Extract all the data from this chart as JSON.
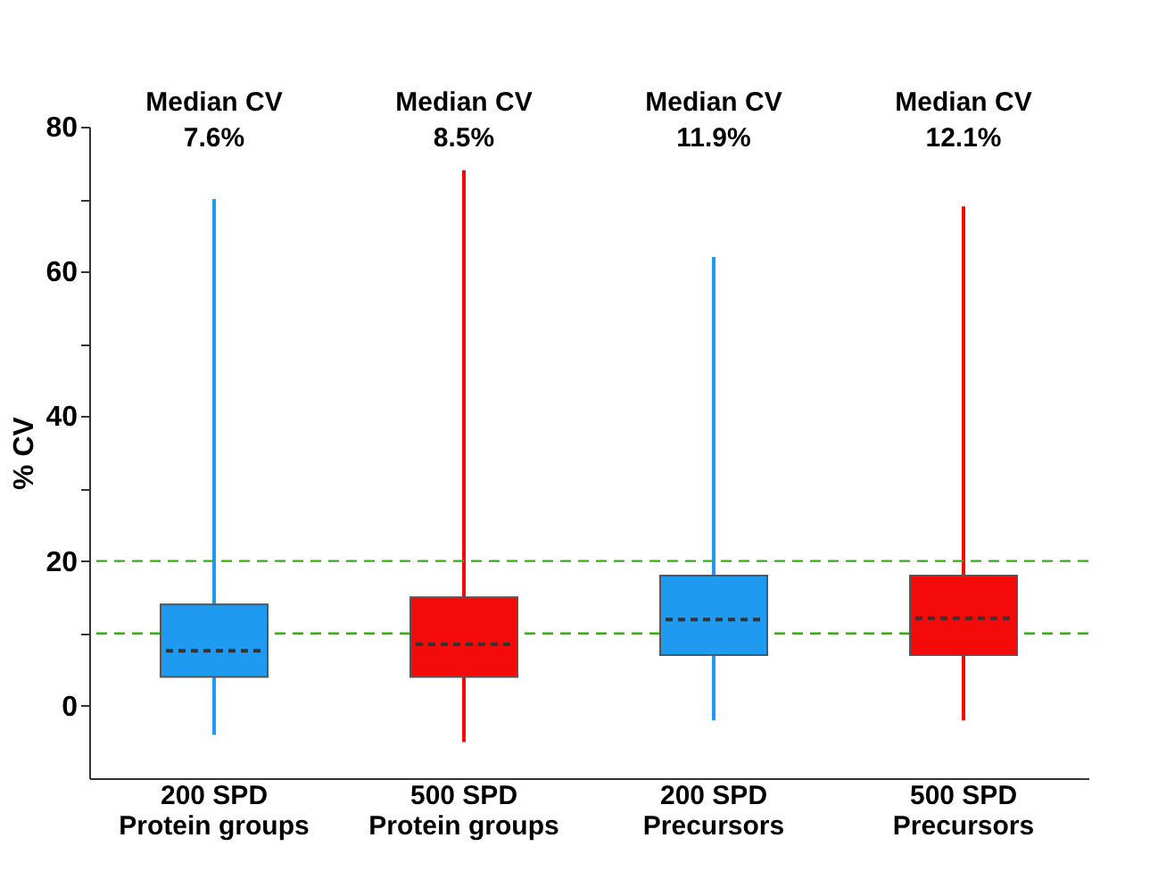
{
  "chart_data": {
    "type": "box",
    "ylabel": "% CV",
    "categories": [
      "200 SPD\nProtein groups",
      "500 SPD\nProtein groups",
      "200 SPD\nPrecursors",
      "500 SPD\nPrecursors"
    ],
    "colors": [
      "#1e9bf0",
      "#f50a0a",
      "#1e9bf0",
      "#f50a0a"
    ],
    "boxes": [
      {
        "low": -4,
        "q1": 4,
        "median": 7.6,
        "q3": 14,
        "high": 70
      },
      {
        "low": -5,
        "q1": 4,
        "median": 8.5,
        "q3": 15,
        "high": 74
      },
      {
        "low": -2,
        "q1": 7,
        "median": 11.9,
        "q3": 18,
        "high": 62
      },
      {
        "low": -2,
        "q1": 7,
        "median": 12.1,
        "q3": 18,
        "high": 69
      }
    ],
    "ylim": [
      -10,
      80
    ],
    "yticks": [
      0,
      {
        "value": 10,
        "label": null
      },
      20,
      {
        "value": 30,
        "label": null
      },
      40,
      {
        "value": 50,
        "label": null
      },
      60,
      {
        "value": 70,
        "label": null
      },
      80
    ],
    "ref_lines": [
      {
        "axis": "y",
        "value": 10,
        "color": "#3caa1e",
        "line_style": "dashed"
      },
      {
        "axis": "y",
        "value": 20,
        "color": "#3caa1e",
        "line_style": "dashed"
      }
    ],
    "annotations": [
      "Median CV\n7.6%",
      "Median CV\n8.5%",
      "Median CV\n11.9%",
      "Median CV\n12.1%"
    ],
    "grid": false,
    "legend": false
  }
}
